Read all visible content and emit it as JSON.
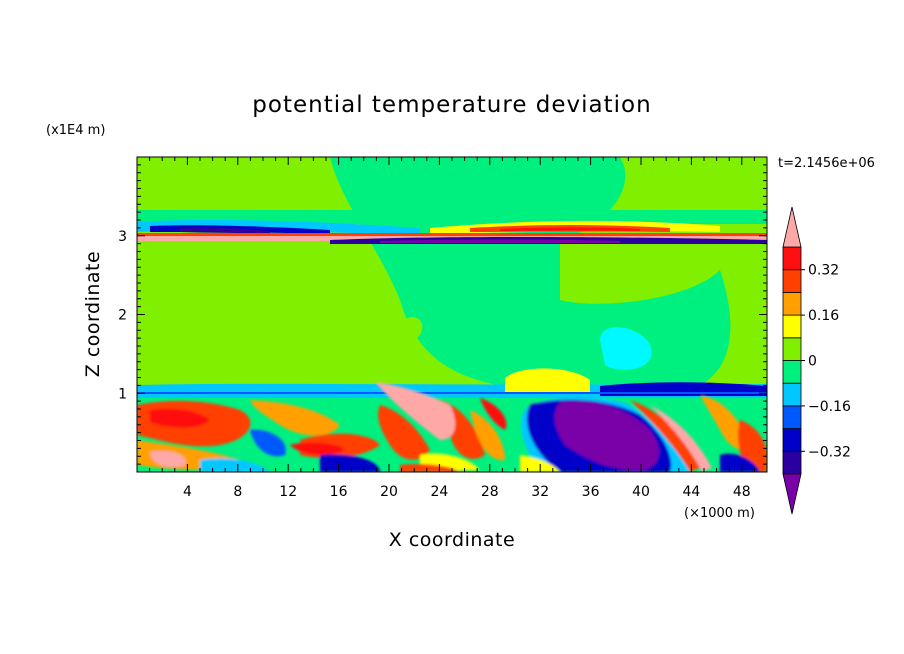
{
  "chart_data": {
    "type": "heatmap",
    "title": "potential temperature deviation",
    "xlabel": "X coordinate",
    "ylabel": "Z coordinate",
    "x_unit": "(×1000 m)",
    "y_unit": "(x1E4 m)",
    "time_label": "t=2.1456e+06",
    "xlim": [
      0,
      50
    ],
    "ylim": [
      0,
      4
    ],
    "x_ticks": [
      "4",
      "8",
      "12",
      "16",
      "20",
      "24",
      "28",
      "32",
      "36",
      "40",
      "44",
      "48"
    ],
    "x_tick_values": [
      4,
      8,
      12,
      16,
      20,
      24,
      28,
      32,
      36,
      40,
      44,
      48
    ],
    "y_ticks": [
      "1",
      "2",
      "3"
    ],
    "y_tick_values": [
      1,
      2,
      3
    ],
    "colorbar": {
      "levels": [
        -0.48,
        -0.4,
        -0.32,
        -0.24,
        -0.16,
        -0.08,
        0,
        0.08,
        0.16,
        0.24,
        0.32,
        0.4,
        0.48
      ],
      "colors": [
        "#7a00a8",
        "#2b00a0",
        "#0000c8",
        "#0058ff",
        "#00c8ff",
        "#00f080",
        "#80f000",
        "#ffff00",
        "#ffa000",
        "#ff4000",
        "#ff1010",
        "#ffa8a8"
      ],
      "tick_labels": [
        "0.32",
        "0.16",
        "0",
        "−0.16",
        "−0.32"
      ],
      "tick_values": [
        0.32,
        0.16,
        0,
        -0.16,
        -0.32
      ]
    },
    "colors": {
      "background": "#80f000",
      "pink": "#ffa8a8",
      "purple": "#7a00a8"
    }
  }
}
